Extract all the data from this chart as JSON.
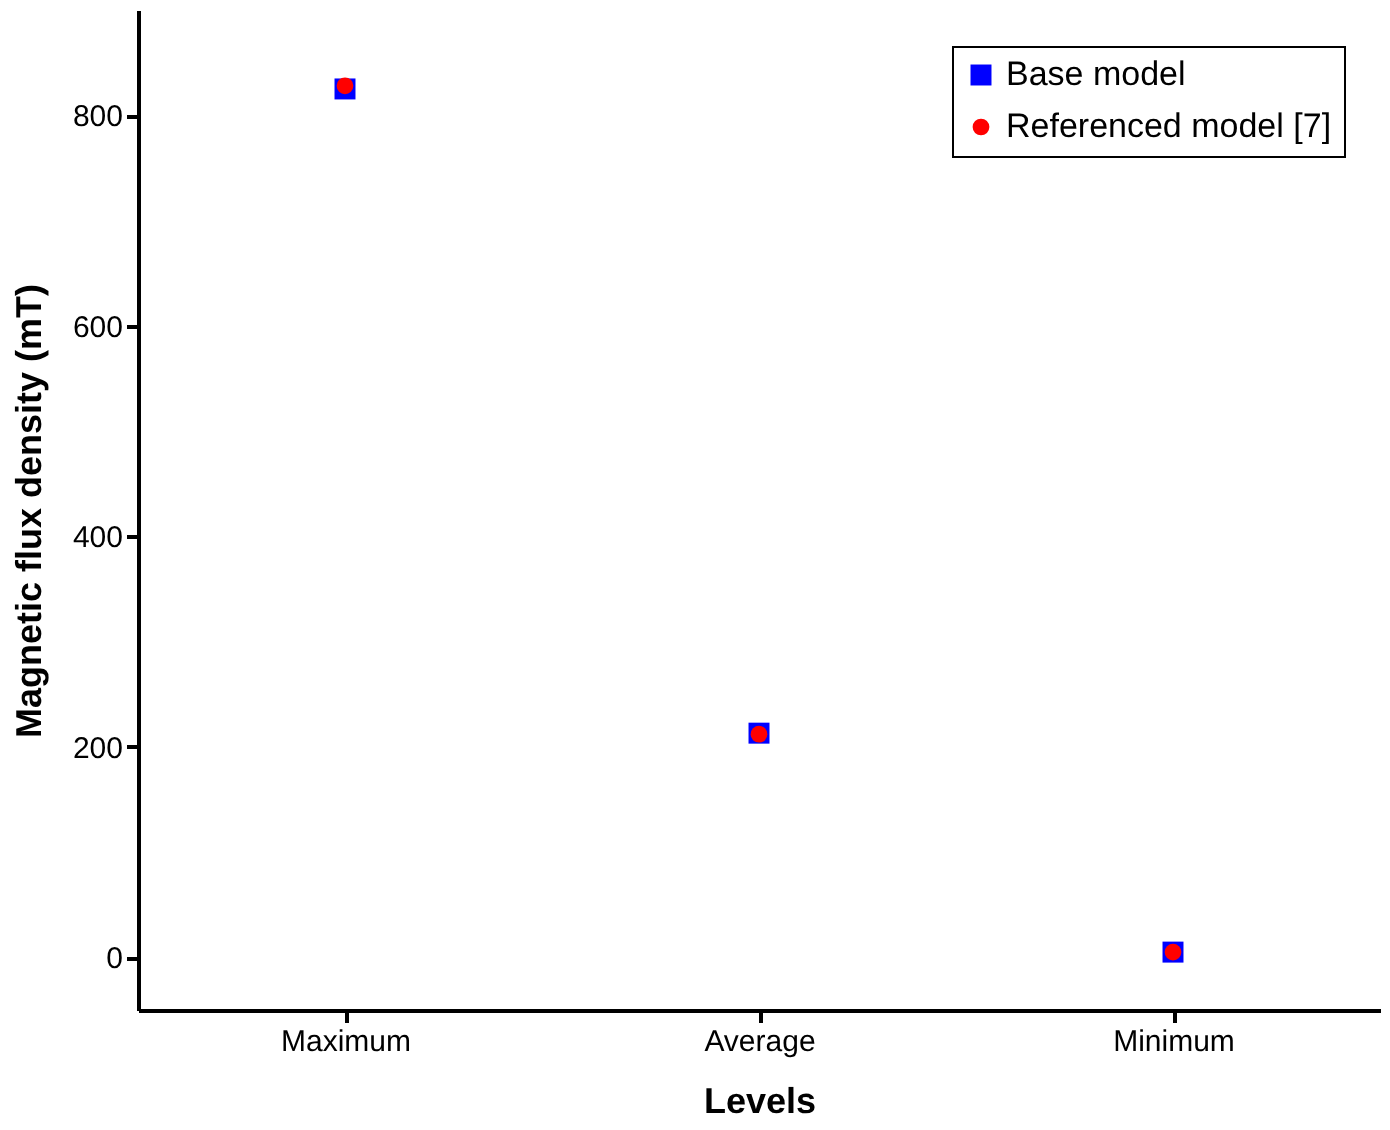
{
  "chart_data": {
    "type": "scatter",
    "xlabel": "Levels",
    "ylabel": "Magnetic flux density (mT)",
    "categories": [
      "Maximum",
      "Average",
      "Minimum"
    ],
    "series": [
      {
        "name": "Base model",
        "color": "#0000ff",
        "marker": "square",
        "values": [
          825,
          213,
          5
        ]
      },
      {
        "name": "Referenced model [7]",
        "color": "#ff0000",
        "marker": "circle",
        "values": [
          828,
          212,
          5
        ]
      }
    ],
    "ylim": [
      -50,
      900
    ],
    "yticks": [
      0,
      200,
      400,
      600,
      800
    ],
    "grid": false,
    "legend": "top right"
  }
}
